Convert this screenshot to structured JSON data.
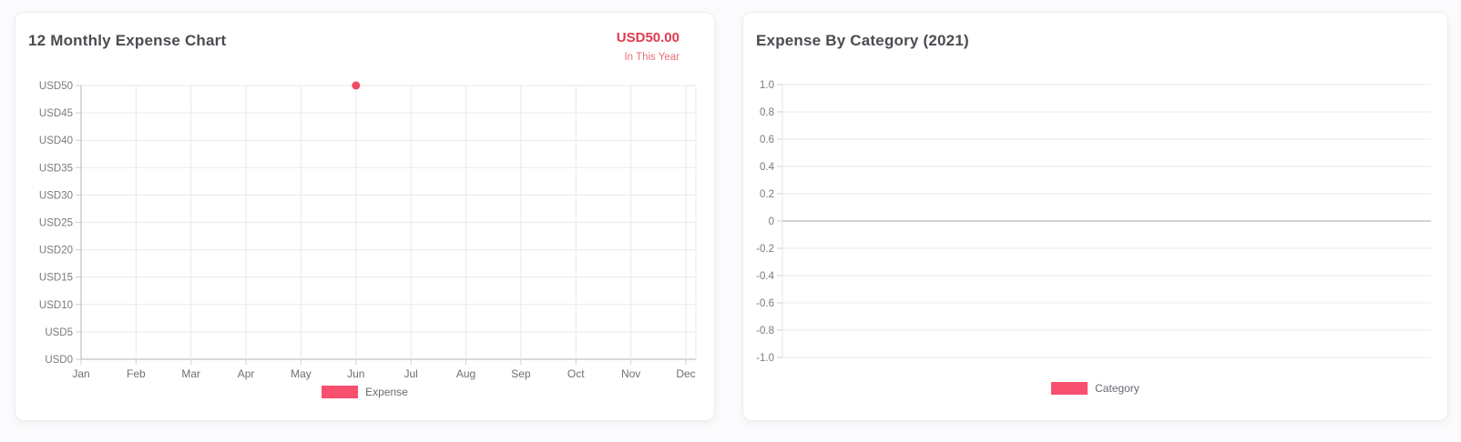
{
  "page": {
    "background": "#fbfbfd",
    "card_background": "#ffffff"
  },
  "cards": [
    {
      "title": "12 Monthly Expense Chart",
      "header_value": "USD50.00",
      "header_caption": "In This Year"
    },
    {
      "title": "Expense By Category (2021)"
    }
  ],
  "colors": {
    "series_pink": "#f8506e",
    "point_red": "#ef4b62",
    "header_red": "#e03a4e",
    "header_caption_red": "#e66f7c",
    "grid_light": "#e9e9ed",
    "axis_dark": "#b3b3ba",
    "zero_line": "#a9a9b0",
    "tick_label": "#7a7a80",
    "month_label": "#6f6f75"
  },
  "chart_data": [
    {
      "type": "line",
      "title": "12 Monthly Expense Chart",
      "categories": [
        "Jan",
        "Feb",
        "Mar",
        "Apr",
        "May",
        "Jun",
        "Jul",
        "Aug",
        "Sep",
        "Oct",
        "Nov",
        "Dec"
      ],
      "series": [
        {
          "name": "Expense",
          "color": "#f8506e",
          "point_color": "#ef4b62",
          "values": [
            null,
            null,
            null,
            null,
            null,
            50,
            null,
            null,
            null,
            null,
            null,
            null
          ]
        }
      ],
      "ylim": [
        0,
        50
      ],
      "ytick_step": 5,
      "yticks": [
        "USD50",
        "USD45",
        "USD40",
        "USD35",
        "USD30",
        "USD25",
        "USD20",
        "USD15",
        "USD10",
        "USD5",
        "USD0"
      ],
      "ylabel_prefix": "USD",
      "grid": "both",
      "legend": {
        "label": "Expense",
        "position": "bottom"
      },
      "xlabel": "",
      "ylabel": ""
    },
    {
      "type": "line",
      "title": "Expense By Category (2021)",
      "categories": [],
      "series": [
        {
          "name": "Category",
          "color": "#f8506e",
          "point_color": "#ef4b62",
          "values": []
        }
      ],
      "ylim": [
        -1,
        1
      ],
      "ytick_step": 0.2,
      "yticks": [
        "1.0",
        "0.8",
        "0.6",
        "0.4",
        "0.2",
        "0",
        "-0.2",
        "-0.4",
        "-0.6",
        "-0.8",
        "-1.0"
      ],
      "grid": "horizontal",
      "legend": {
        "label": "Category",
        "position": "bottom"
      },
      "xlabel": "",
      "ylabel": ""
    }
  ]
}
